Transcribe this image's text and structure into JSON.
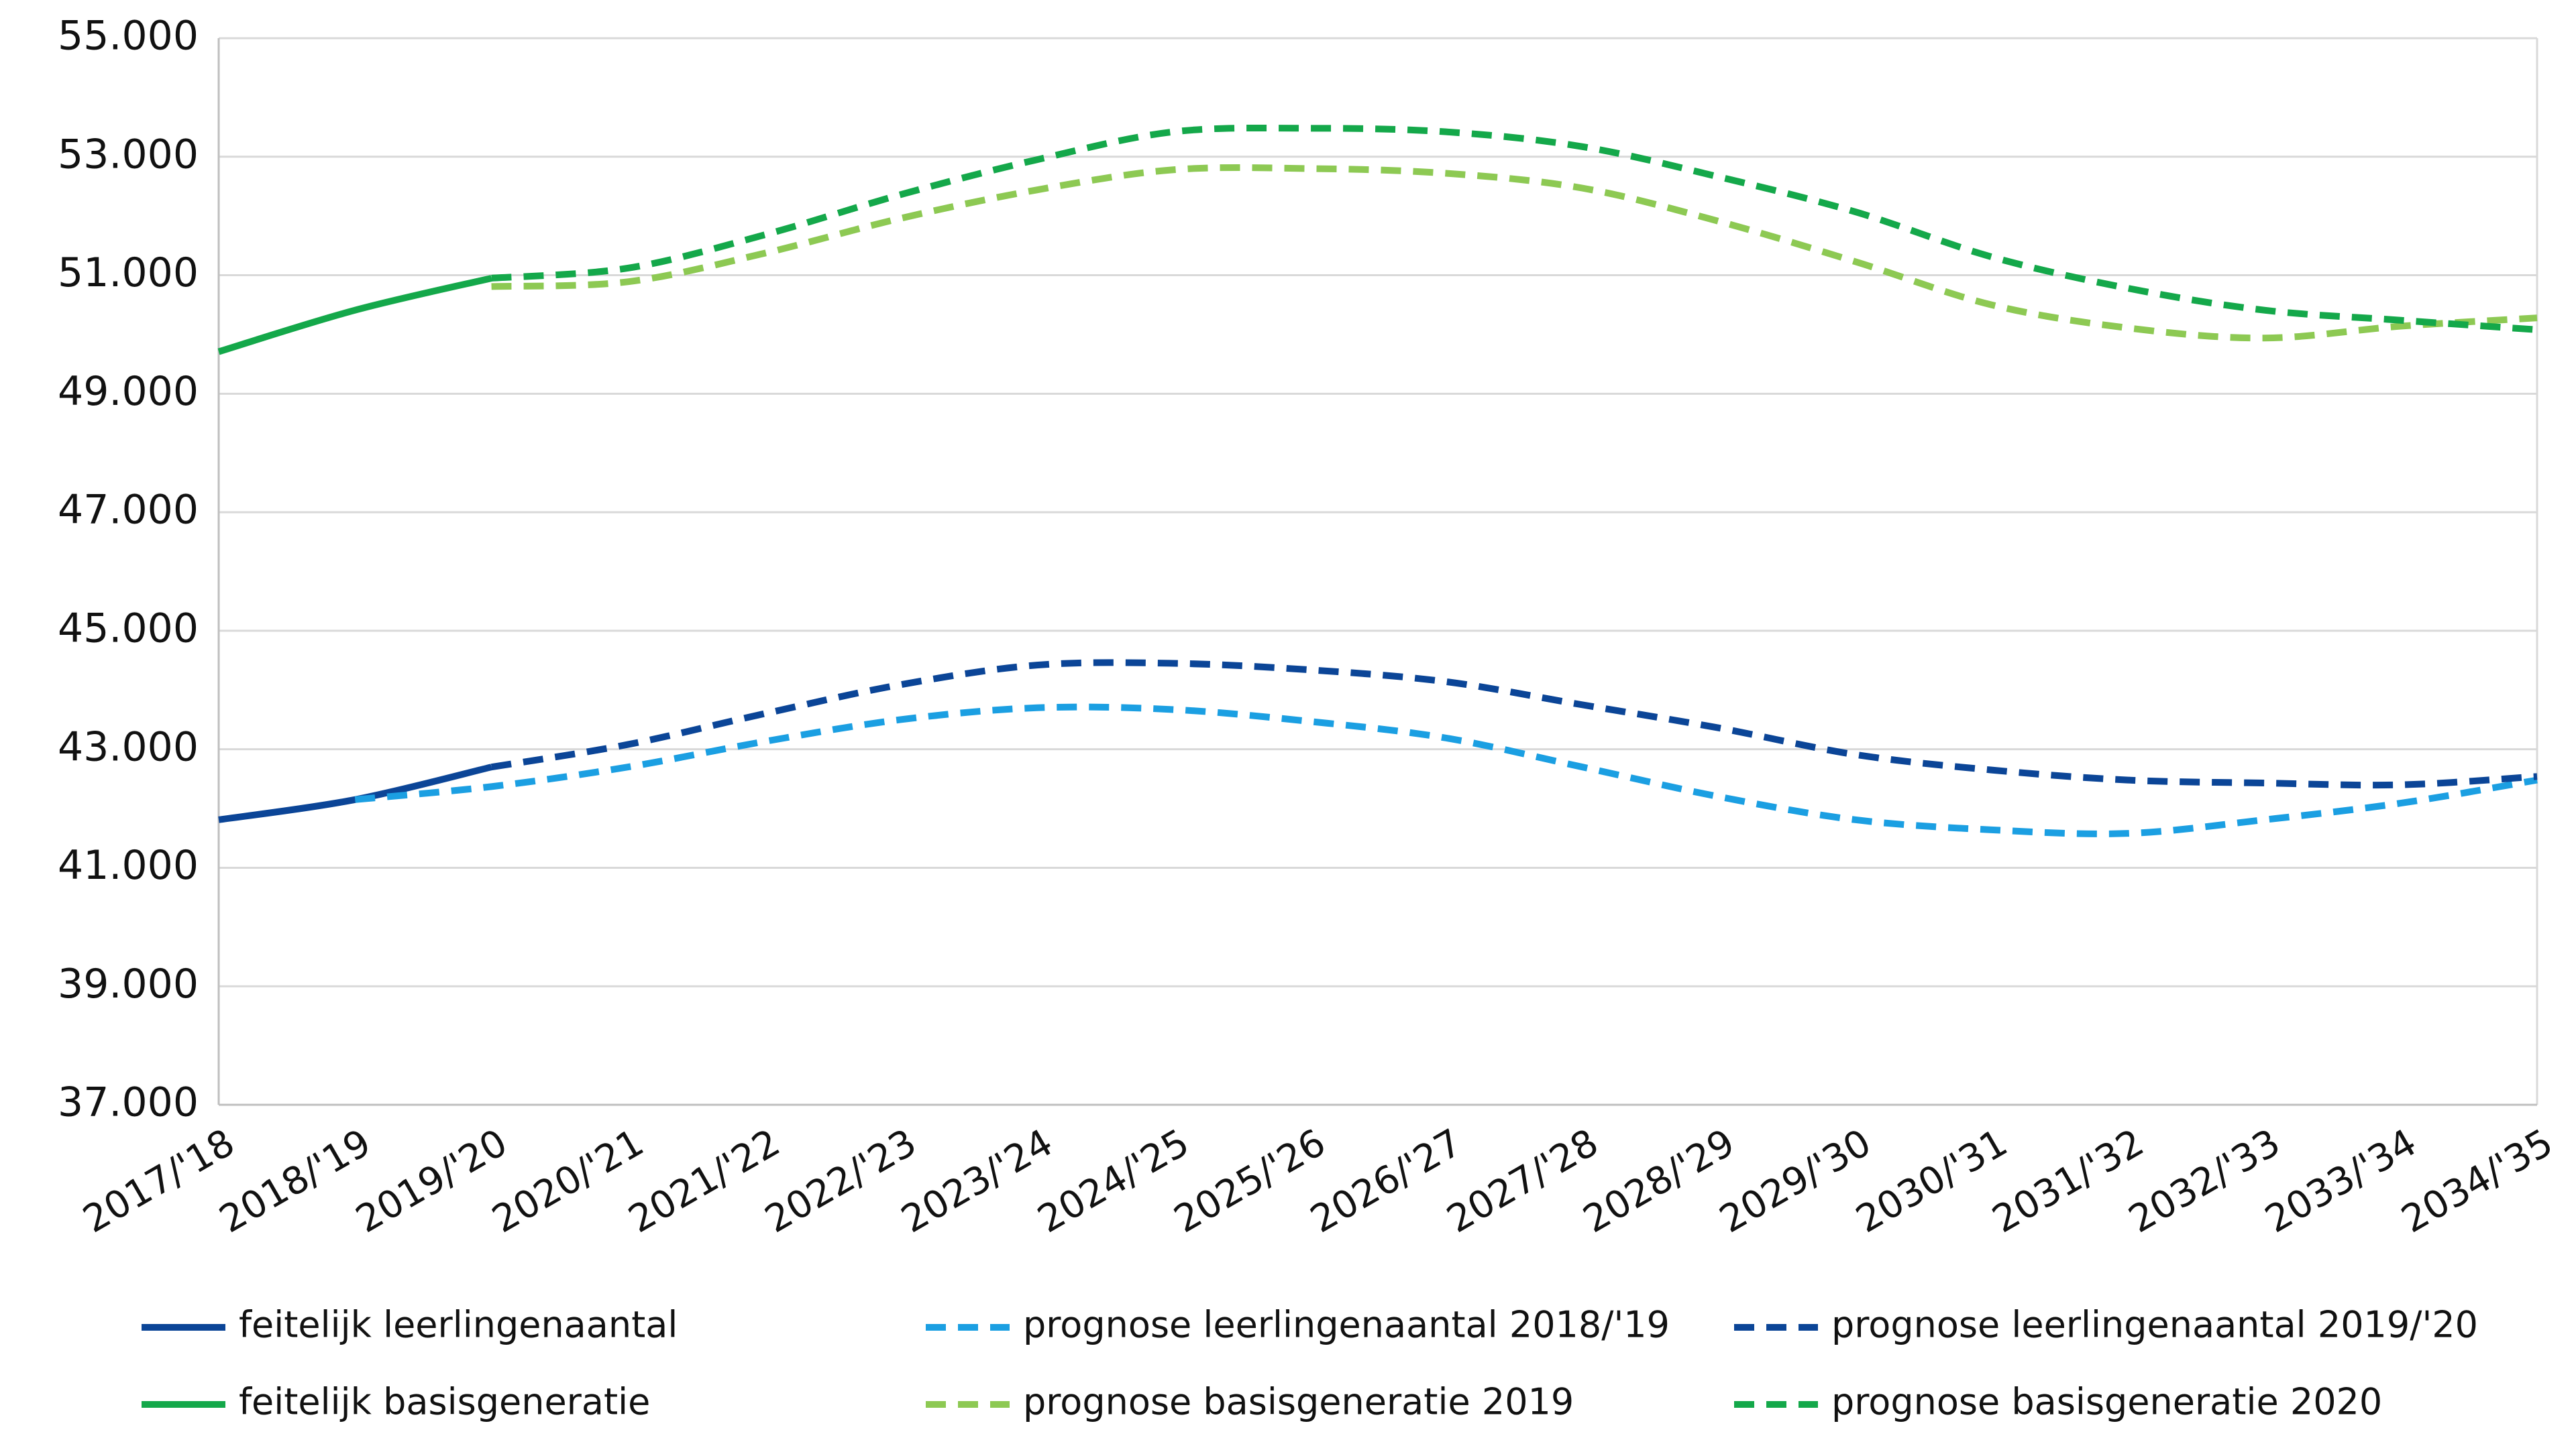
{
  "chart_data": {
    "type": "line",
    "categories": [
      "2017/'18",
      "2018/'19",
      "2019/'20",
      "2020/'21",
      "2021/'22",
      "2022/'23",
      "2023/'24",
      "2024/'25",
      "2025/'26",
      "2026/'27",
      "2027/'28",
      "2028/'29",
      "2029/'30",
      "2030/'31",
      "2031/'32",
      "2032/'33",
      "2033/'34",
      "2034/'35"
    ],
    "series": [
      {
        "name": "feitelijk leerlingenaantal",
        "color": "#0b4597",
        "style": "solid",
        "values": [
          41810,
          42150,
          42700,
          null,
          null,
          null,
          null,
          null,
          null,
          null,
          null,
          null,
          null,
          null,
          null,
          null,
          null,
          null
        ]
      },
      {
        "name": "prognose leerlingenaantal 2018/'19",
        "color": "#1b9fe2",
        "style": "dashed",
        "values": [
          null,
          42150,
          42370,
          42700,
          43130,
          43500,
          43700,
          43670,
          43470,
          43190,
          42700,
          42200,
          41810,
          41640,
          41580,
          41810,
          42090,
          42480
        ]
      },
      {
        "name": "prognose leerlingenaantal 2019/'20",
        "color": "#0b4597",
        "style": "dashed",
        "values": [
          null,
          null,
          42700,
          43080,
          43600,
          44090,
          44420,
          44450,
          44340,
          44140,
          43750,
          43360,
          42910,
          42650,
          42480,
          42430,
          42400,
          42540
        ]
      },
      {
        "name": "feitelijk basisgeneratie",
        "color": "#14a84a",
        "style": "solid",
        "values": [
          49710,
          50410,
          50950,
          null,
          null,
          null,
          null,
          null,
          null,
          null,
          null,
          null,
          null,
          null,
          null,
          null,
          null,
          null
        ]
      },
      {
        "name": "prognose basisgeneratie 2019",
        "color": "#8dc953",
        "style": "dashed",
        "values": [
          null,
          null,
          50810,
          50890,
          51370,
          51960,
          52440,
          52780,
          52800,
          52720,
          52470,
          51910,
          51230,
          50500,
          50110,
          49940,
          50140,
          50280
        ]
      },
      {
        "name": "prognose basisgeneratie 2020",
        "color": "#14a84a",
        "style": "dashed",
        "values": [
          null,
          null,
          50950,
          51120,
          51680,
          52360,
          52950,
          53420,
          53480,
          53420,
          53170,
          52660,
          52070,
          51310,
          50780,
          50410,
          50240,
          50080
        ]
      }
    ],
    "ylim": [
      37000,
      55000
    ],
    "yticks": [
      {
        "value": 37000,
        "label": "37.000"
      },
      {
        "value": 39000,
        "label": "39.000"
      },
      {
        "value": 41000,
        "label": "41.000"
      },
      {
        "value": 43000,
        "label": "43.000"
      },
      {
        "value": 45000,
        "label": "45.000"
      },
      {
        "value": 47000,
        "label": "47.000"
      },
      {
        "value": 49000,
        "label": "49.000"
      },
      {
        "value": 51000,
        "label": "51.000"
      },
      {
        "value": 53000,
        "label": "53.000"
      },
      {
        "value": 55000,
        "label": "55.000"
      }
    ],
    "grid": true,
    "legend": "bottom"
  }
}
